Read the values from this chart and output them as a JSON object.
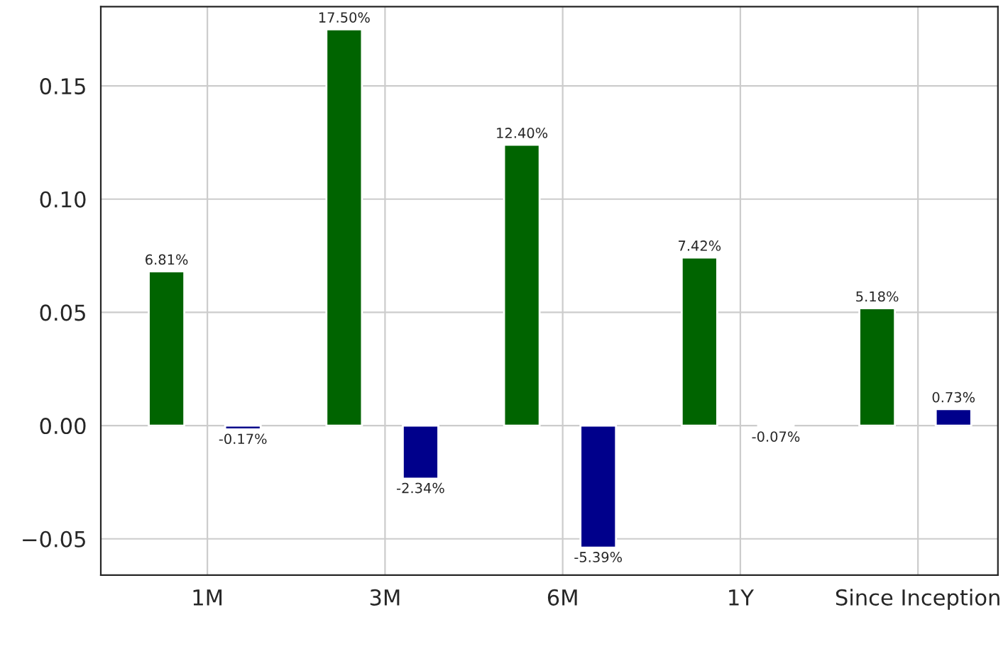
{
  "chart_data": {
    "type": "bar",
    "categories": [
      "1M",
      "3M",
      "6M",
      "1Y",
      "Since Inception"
    ],
    "series": [
      {
        "color": "#006400",
        "values": [
          0.0681,
          0.175,
          0.124,
          0.0742,
          0.0518
        ],
        "value_labels": [
          "6.81%",
          "17.50%",
          "12.40%",
          "7.42%",
          "5.18%"
        ]
      },
      {
        "color": "#00008b",
        "values": [
          -0.0017,
          -0.0234,
          -0.0539,
          -0.0007,
          0.0073
        ],
        "value_labels": [
          "-0.17%",
          "-2.34%",
          "-5.39%",
          "-0.07%",
          "0.73%"
        ]
      }
    ],
    "ylim": [
      -0.066,
      0.185
    ],
    "yticks": [
      {
        "value": -0.05,
        "label": "−0.05"
      },
      {
        "value": 0.0,
        "label": "0.00"
      },
      {
        "value": 0.05,
        "label": "0.05"
      },
      {
        "value": 0.1,
        "label": "0.10"
      },
      {
        "value": 0.15,
        "label": "0.15"
      }
    ],
    "grid": true
  }
}
